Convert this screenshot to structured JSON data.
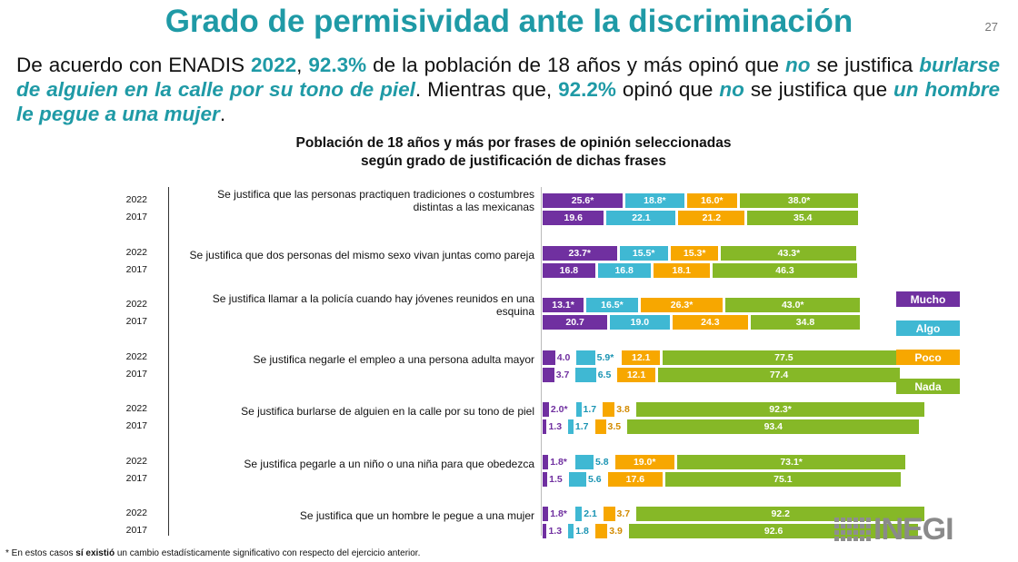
{
  "page": {
    "title": "Grado de permisividad ante la discriminación",
    "page_number": "27"
  },
  "intro": {
    "t1": "De acuerdo con ENADIS ",
    "year": "2022",
    "t2": ", ",
    "pct1": "92.3%",
    "t3": " de la población de 18 años y más opinó que ",
    "no1": "no",
    "t4": " se justifica ",
    "phrase1": "burlarse de alguien en la calle por su tono de piel",
    "t5": ". Mientras que, ",
    "pct2": "92.2%",
    "t6": " opinó que ",
    "no2": "no",
    "t7": " se justifica que ",
    "phrase2": "un hombre le pegue a una mujer",
    "t8": "."
  },
  "chart_data": {
    "type": "bar",
    "orientation": "horizontal",
    "title_line1": "Población de 18 años y más por frases de opinión seleccionadas",
    "title_line2": "según grado de justificación de dichas frases",
    "years": [
      "2022",
      "2017"
    ],
    "series_names": [
      "Mucho",
      "Algo",
      "Poco",
      "Nada"
    ],
    "colors": {
      "Mucho": "#7030a0",
      "Algo": "#3fb8d3",
      "Poco": "#f7a700",
      "Nada": "#86b827"
    },
    "categories": [
      {
        "label": "Se justifica que las personas practiquen tradiciones o costumbres distintas a las mexicanas",
        "rows": [
          {
            "year": "2022",
            "values": [
              25.6,
              18.8,
              16.0,
              38.0
            ],
            "labels": [
              "25.6*",
              "18.8*",
              "16.0*",
              "38.0*"
            ]
          },
          {
            "year": "2017",
            "values": [
              19.6,
              22.1,
              21.2,
              35.4
            ],
            "labels": [
              "19.6",
              "22.1",
              "21.2",
              "35.4"
            ]
          }
        ]
      },
      {
        "label": "Se justifica que dos personas del mismo sexo vivan juntas como pareja",
        "rows": [
          {
            "year": "2022",
            "values": [
              23.7,
              15.5,
              15.3,
              43.3
            ],
            "labels": [
              "23.7*",
              "15.5*",
              "15.3*",
              "43.3*"
            ]
          },
          {
            "year": "2017",
            "values": [
              16.8,
              16.8,
              18.1,
              46.3
            ],
            "labels": [
              "16.8",
              "16.8",
              "18.1",
              "46.3"
            ]
          }
        ]
      },
      {
        "label": "Se justifica llamar a la policía cuando hay jóvenes reunidos en una esquina",
        "rows": [
          {
            "year": "2022",
            "values": [
              13.1,
              16.5,
              26.3,
              43.0
            ],
            "labels": [
              "13.1*",
              "16.5*",
              "26.3*",
              "43.0*"
            ]
          },
          {
            "year": "2017",
            "values": [
              20.7,
              19.0,
              24.3,
              34.8
            ],
            "labels": [
              "20.7",
              "19.0",
              "24.3",
              "34.8"
            ]
          }
        ]
      },
      {
        "label": "Se justifica negarle el empleo a una persona adulta mayor",
        "rows": [
          {
            "year": "2022",
            "values": [
              4.0,
              5.9,
              12.1,
              77.5
            ],
            "labels": [
              "4.0",
              "5.9*",
              "12.1",
              "77.5"
            ]
          },
          {
            "year": "2017",
            "values": [
              3.7,
              6.5,
              12.1,
              77.4
            ],
            "labels": [
              "3.7",
              "6.5",
              "12.1",
              "77.4"
            ]
          }
        ]
      },
      {
        "label": "Se justifica burlarse de alguien en la calle por su tono de piel",
        "rows": [
          {
            "year": "2022",
            "values": [
              2.0,
              1.7,
              3.8,
              92.3
            ],
            "labels": [
              "2.0*",
              "1.7",
              "3.8",
              "92.3*"
            ]
          },
          {
            "year": "2017",
            "values": [
              1.3,
              1.7,
              3.5,
              93.4
            ],
            "labels": [
              "1.3",
              "1.7",
              "3.5",
              "93.4"
            ]
          }
        ]
      },
      {
        "label": "Se justifica pegarle a un niño o una niña para que obedezca",
        "rows": [
          {
            "year": "2022",
            "values": [
              1.8,
              5.8,
              19.0,
              73.1
            ],
            "labels": [
              "1.8*",
              "5.8",
              "19.0*",
              "73.1*"
            ]
          },
          {
            "year": "2017",
            "values": [
              1.5,
              5.6,
              17.6,
              75.1
            ],
            "labels": [
              "1.5",
              "5.6",
              "17.6",
              "75.1"
            ]
          }
        ]
      },
      {
        "label": "Se justifica que un hombre le pegue a una mujer",
        "rows": [
          {
            "year": "2022",
            "values": [
              1.8,
              2.1,
              3.7,
              92.2
            ],
            "labels": [
              "1.8*",
              "2.1",
              "3.7",
              "92.2"
            ]
          },
          {
            "year": "2017",
            "values": [
              1.3,
              1.8,
              3.9,
              92.6
            ],
            "labels": [
              "1.3",
              "1.8",
              "3.9",
              "92.6"
            ]
          }
        ]
      }
    ]
  },
  "legend": [
    "Mucho",
    "Algo",
    "Poco",
    "Nada"
  ],
  "footnote": {
    "prefix": "* En estos casos ",
    "bold": "sí existió",
    "suffix": " un cambio estadísticamente significativo con respecto del ejercicio anterior."
  },
  "logo": {
    "text": "INEGI"
  }
}
